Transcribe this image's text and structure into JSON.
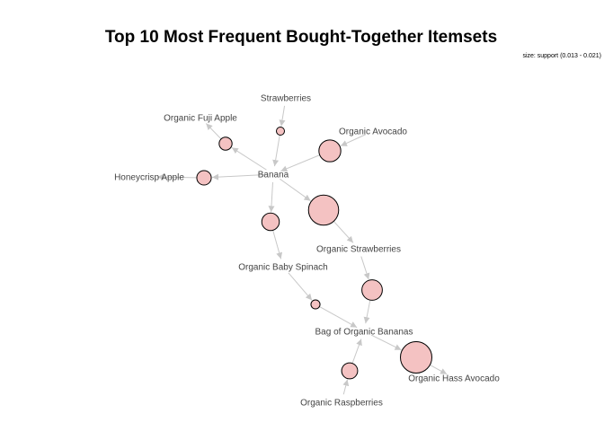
{
  "title": "Top 10 Most Frequent Bought-Together Itemsets",
  "legend": "size: support (0.013 - 0.021)",
  "colors": {
    "itemset_fill": "#f4c2c2",
    "edge": "#c8c8c8",
    "label": "#444444"
  },
  "items": [
    {
      "id": "banana",
      "label": "Banana"
    },
    {
      "id": "strawberries",
      "label": "Strawberries"
    },
    {
      "id": "organic-fuji-apple",
      "label": "Organic Fuji Apple"
    },
    {
      "id": "organic-avocado",
      "label": "Organic Avocado"
    },
    {
      "id": "honeycrisp-apple",
      "label": "Honeycrisp Apple"
    },
    {
      "id": "organic-strawberries",
      "label": "Organic Strawberries"
    },
    {
      "id": "organic-baby-spinach",
      "label": "Organic Baby Spinach"
    },
    {
      "id": "bag-of-organic-bananas",
      "label": "Bag of Organic Bananas"
    },
    {
      "id": "organic-hass-avocado",
      "label": "Organic Hass Avocado"
    },
    {
      "id": "organic-raspberries",
      "label": "Organic Raspberries"
    }
  ],
  "itemsets": [
    {
      "id": "r1",
      "lhs": "strawberries",
      "rhs": "banana",
      "support": 0.013
    },
    {
      "id": "r2",
      "lhs": "banana",
      "rhs": "organic-fuji-apple",
      "support": 0.0145
    },
    {
      "id": "r3",
      "lhs": "organic-avocado",
      "rhs": "banana",
      "support": 0.0175
    },
    {
      "id": "r4",
      "lhs": "banana",
      "rhs": "honeycrisp-apple",
      "support": 0.015
    },
    {
      "id": "r5",
      "lhs": "banana",
      "rhs": "organic-strawberries",
      "support": 0.0205
    },
    {
      "id": "r6",
      "lhs": "banana",
      "rhs": "organic-baby-spinach",
      "support": 0.016
    },
    {
      "id": "r7",
      "lhs": "organic-strawberries",
      "rhs": "bag-of-organic-bananas",
      "support": 0.017
    },
    {
      "id": "r8",
      "lhs": "organic-baby-spinach",
      "rhs": "bag-of-organic-bananas",
      "support": 0.0133
    },
    {
      "id": "r9",
      "lhs": "bag-of-organic-bananas",
      "rhs": "organic-hass-avocado",
      "support": 0.021
    },
    {
      "id": "r10",
      "lhs": "organic-raspberries",
      "rhs": "bag-of-organic-bananas",
      "support": 0.0155
    }
  ]
}
